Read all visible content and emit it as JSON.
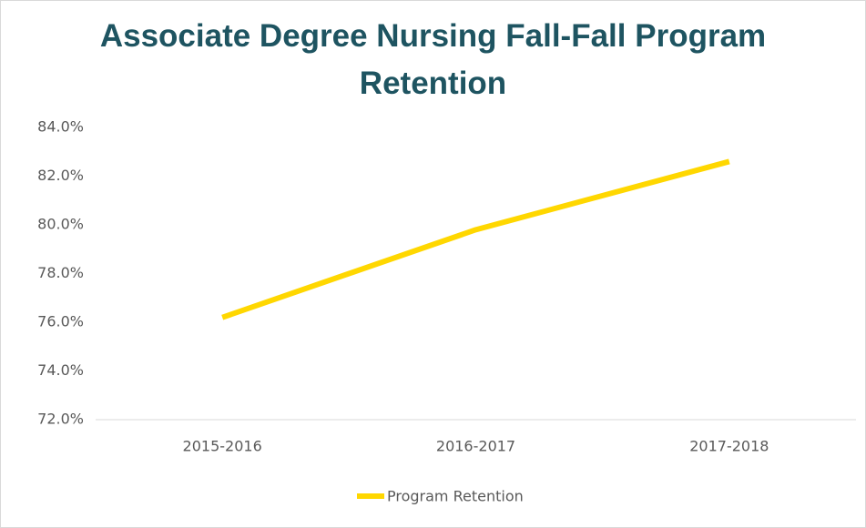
{
  "chart_data": {
    "type": "line",
    "title": "Associate Degree Nursing Fall-Fall Program Retention",
    "categories": [
      "2015-2016",
      "2016-2017",
      "2017-2018"
    ],
    "series": [
      {
        "name": "Program Retention",
        "color": "#ffd700",
        "values": [
          76.2,
          79.8,
          82.6
        ]
      }
    ],
    "ylim": [
      72,
      84
    ],
    "yticks": [
      {
        "value": 72,
        "label": "72.0%"
      },
      {
        "value": 74,
        "label": "74.0%"
      },
      {
        "value": 76,
        "label": "76.0%"
      },
      {
        "value": 78,
        "label": "78.0%"
      },
      {
        "value": 80,
        "label": "80.0%"
      },
      {
        "value": 82,
        "label": "82.0%"
      },
      {
        "value": 84,
        "label": "84.0%"
      }
    ],
    "grid": false,
    "legend": "bottom"
  }
}
